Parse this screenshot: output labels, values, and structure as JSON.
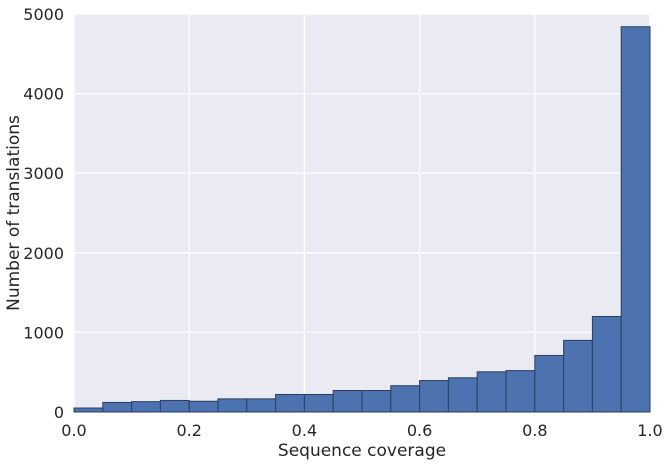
{
  "chart_data": {
    "type": "bar",
    "title": "",
    "xlabel": "Sequence coverage",
    "ylabel": "Number of translations",
    "xlim": [
      0.0,
      1.0
    ],
    "ylim": [
      0,
      5000
    ],
    "grid": true,
    "background": "#eaeaf2",
    "bar_color": "#4c72b0",
    "bin_edges": [
      0.0,
      0.05,
      0.1,
      0.15,
      0.2,
      0.25,
      0.3,
      0.35,
      0.4,
      0.45,
      0.5,
      0.55,
      0.6,
      0.65,
      0.7,
      0.75,
      0.8,
      0.85,
      0.9,
      0.95,
      1.0
    ],
    "values": [
      50,
      120,
      130,
      145,
      135,
      165,
      165,
      220,
      220,
      270,
      270,
      330,
      395,
      430,
      505,
      520,
      710,
      900,
      1200,
      4840
    ],
    "xticks": [
      "0.0",
      "0.2",
      "0.4",
      "0.6",
      "0.8",
      "1.0"
    ],
    "xtick_values": [
      0.0,
      0.2,
      0.4,
      0.6,
      0.8,
      1.0
    ],
    "yticks": [
      "0",
      "1000",
      "2000",
      "3000",
      "4000",
      "5000"
    ],
    "ytick_values": [
      0,
      1000,
      2000,
      3000,
      4000,
      5000
    ]
  }
}
